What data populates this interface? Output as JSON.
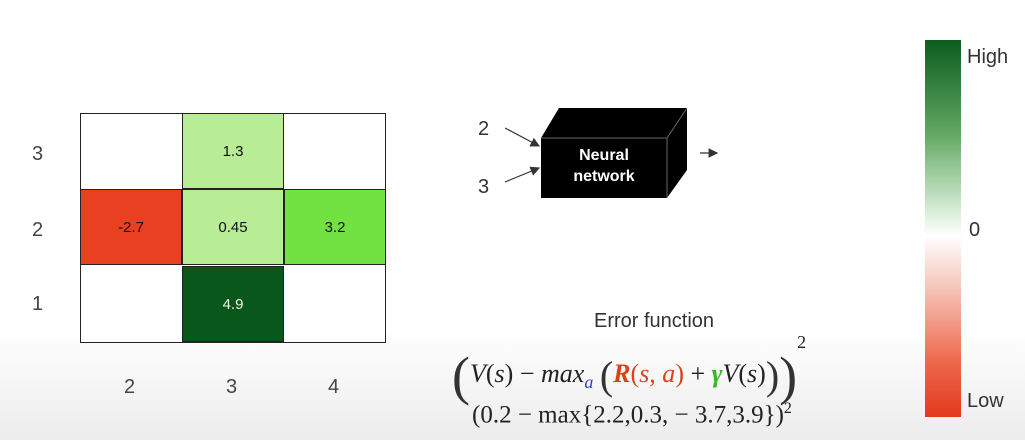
{
  "grid": {
    "y_labels": [
      "3",
      "2",
      "1"
    ],
    "x_labels": [
      "2",
      "3",
      "4"
    ],
    "cells": [
      {
        "row": 0,
        "col": 1,
        "value": "1.3",
        "color": "#b8ed95"
      },
      {
        "row": 1,
        "col": 0,
        "value": "-2.7",
        "color": "#e84020"
      },
      {
        "row": 1,
        "col": 1,
        "value": "0.45",
        "color": "#b8ed95"
      },
      {
        "row": 1,
        "col": 2,
        "value": "3.2",
        "color": "#72e243"
      },
      {
        "row": 2,
        "col": 1,
        "value": "4.9",
        "color": "#0a571c"
      }
    ]
  },
  "network": {
    "inputs": [
      "2",
      "3"
    ],
    "label_line1": "Neural",
    "label_line2": "network"
  },
  "error": {
    "title": "Error function",
    "v": "V",
    "s": "s",
    "minus": "−",
    "max": "max",
    "sub_a": "a",
    "R": "R",
    "s_a": "s, a",
    "plus": "+",
    "gamma": "γ",
    "exp": "2",
    "numeric": "(0.2 − max{2.2,0.3, − 3.7,3.9})",
    "numeric_exp": "2"
  },
  "colorbar": {
    "high": "High",
    "zero": "0",
    "low": "Low",
    "colors": {
      "high": "#0b5d1e",
      "mid": "#ffffff",
      "low": "#e2391b"
    }
  },
  "colors": {
    "red": "#d8431c",
    "green": "#3ab526",
    "blue": "#2b3fcf"
  }
}
